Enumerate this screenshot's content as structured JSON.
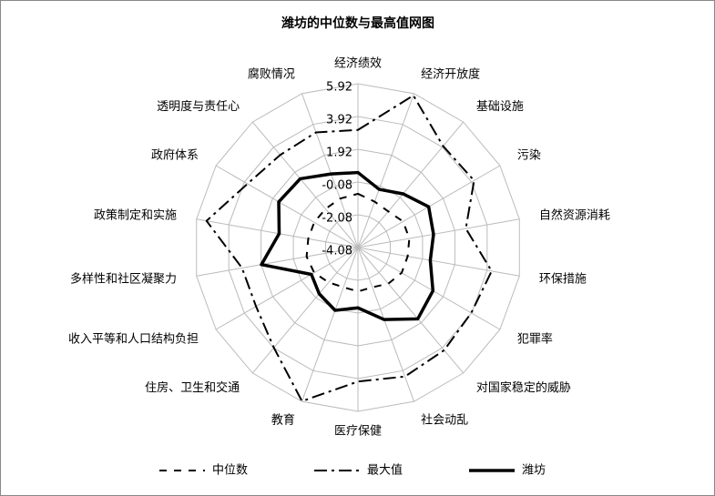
{
  "chart_data": {
    "type": "radar",
    "title": "潍坊的中位数与最高值网图",
    "categories": [
      "经济绩效",
      "经济开放度",
      "基础设施",
      "污染",
      "自然资源消耗",
      "环保措施",
      "犯罪率",
      "对国家稳定的威胁",
      "社会动乱",
      "医疗保健",
      "教育",
      "住房、卫生和交通",
      "收入平等和人口结构负担",
      "多样性和社区凝聚力",
      "政策制定和实施",
      "政府体系",
      "透明度与责任心",
      "腐败情况"
    ],
    "ylim": [
      -4.08,
      5.92
    ],
    "yticks": [
      -4.08,
      -2.08,
      -0.08,
      1.92,
      3.92,
      5.92
    ],
    "grid": true,
    "series": [
      {
        "name": "中位数",
        "color": "#000000",
        "values": [
          -0.8,
          -1.1,
          -1.2,
          -0.9,
          -0.9,
          -1.0,
          -1.0,
          -1.2,
          -1.5,
          -1.4,
          -1.5,
          -1.3,
          -1.0,
          -0.9,
          -1.0,
          -1.0,
          -1.0,
          -0.9
        ]
      },
      {
        "name": "最大值",
        "color": "#000000",
        "values": [
          3.1,
          5.8,
          4.0,
          4.1,
          2.6,
          4.2,
          3.9,
          4.1,
          4.3,
          4.1,
          5.9,
          3.9,
          3.1,
          3.1,
          5.3,
          3.7,
          3.3,
          3.4
        ]
      },
      {
        "name": "潍坊",
        "color": "#000000",
        "values": [
          0.5,
          -0.3,
          0.2,
          0.9,
          0.6,
          0.4,
          1.2,
          1.6,
          0.6,
          -0.4,
          0.0,
          -0.4,
          -0.8,
          1.9,
          0.8,
          1.5,
          1.4,
          0.7
        ]
      }
    ]
  }
}
